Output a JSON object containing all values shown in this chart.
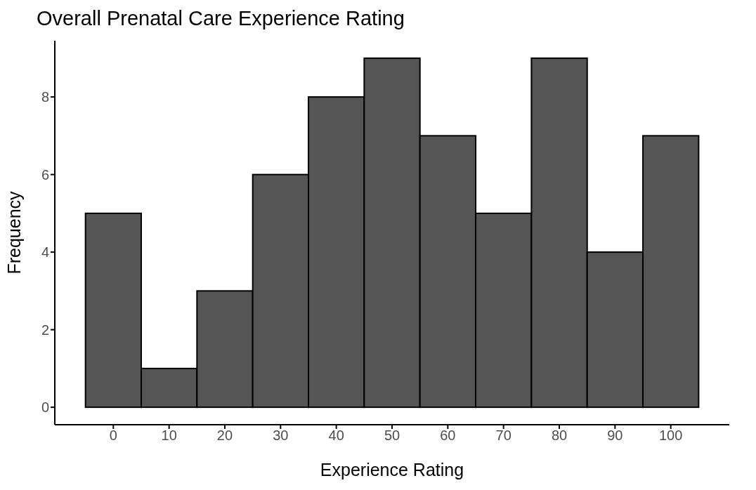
{
  "chart_data": {
    "type": "histogram",
    "title": "Overall Prenatal Care Experience Rating",
    "xlabel": "Experience Rating",
    "ylabel": "Frequency",
    "bins": [
      -5,
      5,
      15,
      25,
      35,
      45,
      55,
      65,
      75,
      85,
      95,
      105
    ],
    "values": [
      5,
      1,
      3,
      6,
      8,
      9,
      7,
      5,
      9,
      4,
      7
    ],
    "color": "#555555",
    "xlim": [
      -10.5,
      110.5
    ],
    "xticks": [
      0,
      10,
      20,
      30,
      40,
      50,
      60,
      70,
      80,
      90,
      100
    ],
    "ylim": [
      -0.45,
      9.45
    ],
    "yticks": [
      0,
      2,
      4,
      6,
      8
    ],
    "grid": false,
    "legend": false
  }
}
